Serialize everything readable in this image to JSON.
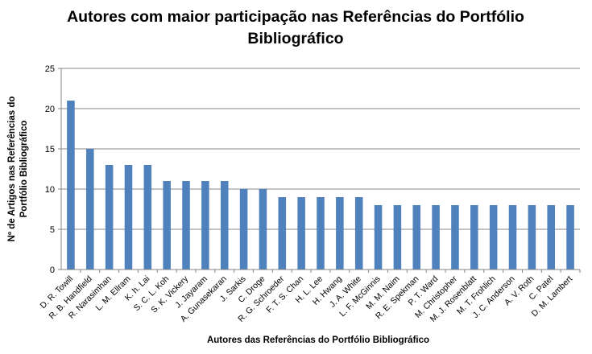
{
  "chart_data": {
    "type": "bar",
    "title_lines": [
      "Autores com maior participação nas Referências do Portfólio",
      "Bibliográfico"
    ],
    "xlabel": "Autores das Referências do Portfólio Bibliográfico",
    "ylabel_lines": [
      "Nº de Artigos nas Referências do",
      "Portfólio Bibliográfico"
    ],
    "ylim": [
      0,
      25
    ],
    "yticks": [
      0,
      5,
      10,
      15,
      20,
      25
    ],
    "grid": true,
    "legend": "none",
    "bar_color": "#4f81bd",
    "grid_color": "#868686",
    "categories": [
      "D. R. Towill",
      "R. B. Handfield",
      "R. Narasimhan",
      "L. M. Ellram",
      "K. h. Lai",
      "S. C. L. Koh",
      "S. K. Vickery",
      "J. Jayaram",
      "A. Gunasekaran",
      "J. Sarkis",
      "C. Droge",
      "R. G. Schroeder",
      "F. T. S. Chan",
      "H. L. Lee",
      "H. Hwang",
      "J. A. White",
      "L. F. McGinnis",
      "M. M. Naim",
      "R. E. Spekman",
      "P. T. Ward",
      "M. Christopher",
      "M. J. Rosenblatt",
      "M. T. Frohlich",
      "J. C. Anderson",
      "A. V. Roth",
      "C. Patel",
      "D. M. Lambert"
    ],
    "values": [
      21,
      15,
      13,
      13,
      13,
      11,
      11,
      11,
      11,
      10,
      10,
      9,
      9,
      9,
      9,
      9,
      8,
      8,
      8,
      8,
      8,
      8,
      8,
      8,
      8,
      8,
      8
    ]
  }
}
